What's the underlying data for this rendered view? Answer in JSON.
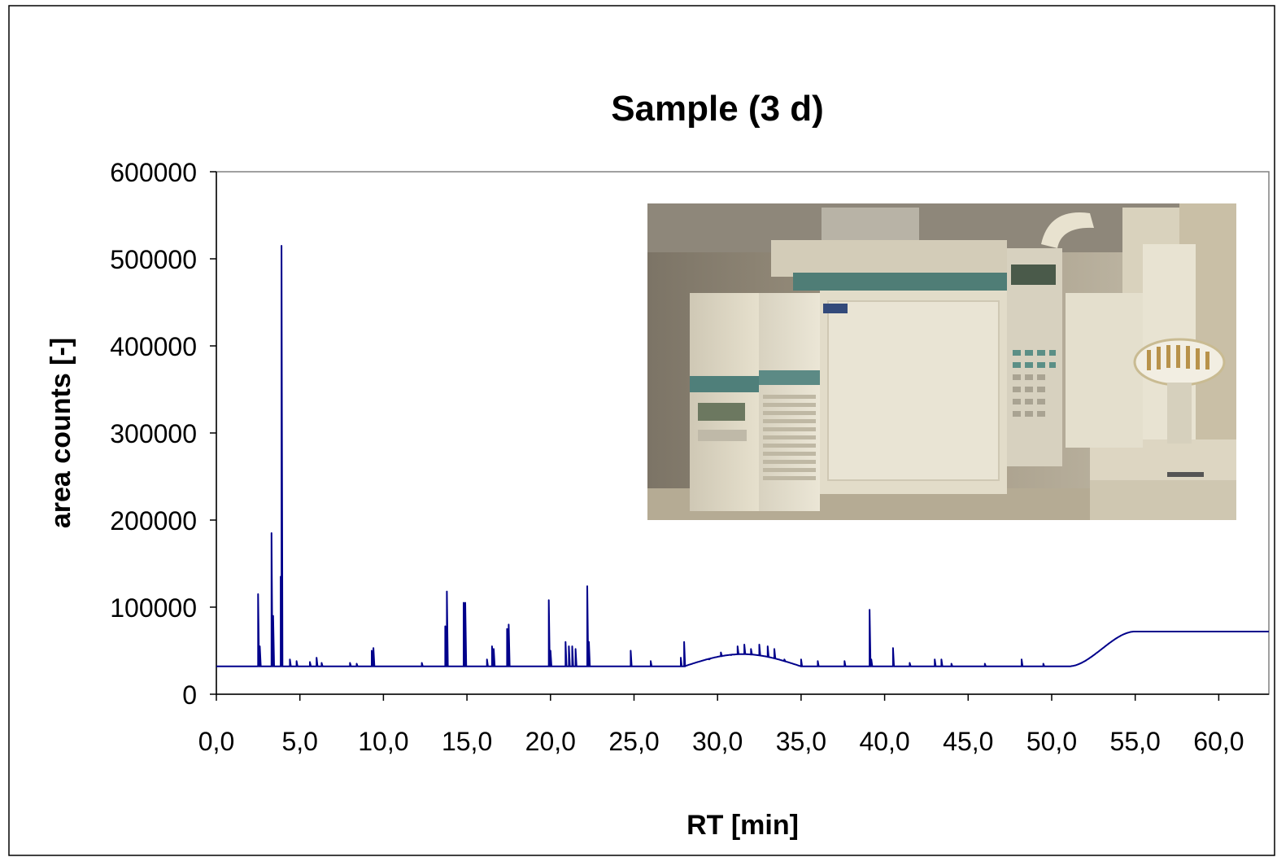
{
  "chart_data": {
    "type": "line",
    "title": "Sample (3 d)",
    "xlabel": "RT [min]",
    "ylabel": "area counts [-]",
    "xlim": [
      0,
      63
    ],
    "ylim": [
      0,
      600000
    ],
    "x_ticks": [
      0,
      5,
      10,
      15,
      20,
      25,
      30,
      35,
      40,
      45,
      50,
      55,
      60
    ],
    "x_tick_labels": [
      "0,0",
      "5,0",
      "10,0",
      "15,0",
      "20,0",
      "25,0",
      "30,0",
      "35,0",
      "40,0",
      "45,0",
      "50,0",
      "55,0",
      "60,0"
    ],
    "y_ticks": [
      0,
      100000,
      200000,
      300000,
      400000,
      500000,
      600000
    ],
    "y_tick_labels": [
      "0",
      "100000",
      "200000",
      "300000",
      "400000",
      "500000",
      "600000"
    ],
    "grid": false,
    "legend": "none",
    "series_color": "#00008B",
    "baseline": 32000,
    "baseline_step": {
      "start": 51.0,
      "end": 55.0,
      "level": 72000
    },
    "peaks": [
      {
        "x": 2.5,
        "y": 115000
      },
      {
        "x": 2.6,
        "y": 55000
      },
      {
        "x": 3.3,
        "y": 185000
      },
      {
        "x": 3.4,
        "y": 90000
      },
      {
        "x": 3.9,
        "y": 515000
      },
      {
        "x": 3.85,
        "y": 135000
      },
      {
        "x": 4.4,
        "y": 40000
      },
      {
        "x": 4.8,
        "y": 38000
      },
      {
        "x": 5.6,
        "y": 37000
      },
      {
        "x": 6.0,
        "y": 42000
      },
      {
        "x": 6.3,
        "y": 36000
      },
      {
        "x": 8.0,
        "y": 36000
      },
      {
        "x": 8.4,
        "y": 35000
      },
      {
        "x": 9.3,
        "y": 50000
      },
      {
        "x": 9.4,
        "y": 53000
      },
      {
        "x": 12.3,
        "y": 36000
      },
      {
        "x": 13.8,
        "y": 118000
      },
      {
        "x": 13.7,
        "y": 78000
      },
      {
        "x": 14.8,
        "y": 105000
      },
      {
        "x": 14.9,
        "y": 105000
      },
      {
        "x": 16.2,
        "y": 40000
      },
      {
        "x": 16.5,
        "y": 55000
      },
      {
        "x": 16.6,
        "y": 52000
      },
      {
        "x": 17.4,
        "y": 75000
      },
      {
        "x": 17.5,
        "y": 80000
      },
      {
        "x": 19.9,
        "y": 108000
      },
      {
        "x": 20.0,
        "y": 50000
      },
      {
        "x": 20.9,
        "y": 60000
      },
      {
        "x": 21.1,
        "y": 55000
      },
      {
        "x": 21.3,
        "y": 55000
      },
      {
        "x": 21.5,
        "y": 52000
      },
      {
        "x": 22.2,
        "y": 124000
      },
      {
        "x": 22.3,
        "y": 60000
      },
      {
        "x": 24.8,
        "y": 50000
      },
      {
        "x": 26.0,
        "y": 38000
      },
      {
        "x": 27.8,
        "y": 42000
      },
      {
        "x": 28.0,
        "y": 60000
      },
      {
        "x": 29.5,
        "y": 40000
      },
      {
        "x": 30.2,
        "y": 48000
      },
      {
        "x": 30.8,
        "y": 45000
      },
      {
        "x": 31.2,
        "y": 55000
      },
      {
        "x": 31.6,
        "y": 57000
      },
      {
        "x": 32.0,
        "y": 52000
      },
      {
        "x": 32.5,
        "y": 57000
      },
      {
        "x": 33.0,
        "y": 55000
      },
      {
        "x": 33.4,
        "y": 52000
      },
      {
        "x": 34.0,
        "y": 40000
      },
      {
        "x": 35.0,
        "y": 40000
      },
      {
        "x": 36.0,
        "y": 38000
      },
      {
        "x": 37.6,
        "y": 38000
      },
      {
        "x": 39.1,
        "y": 97000
      },
      {
        "x": 39.2,
        "y": 40000
      },
      {
        "x": 40.5,
        "y": 53000
      },
      {
        "x": 41.5,
        "y": 36000
      },
      {
        "x": 43.0,
        "y": 40000
      },
      {
        "x": 43.4,
        "y": 40000
      },
      {
        "x": 44.0,
        "y": 35000
      },
      {
        "x": 46.0,
        "y": 35000
      },
      {
        "x": 48.2,
        "y": 40000
      },
      {
        "x": 49.5,
        "y": 35000
      }
    ],
    "inset_image": "gc-ms-instrument-photo"
  }
}
